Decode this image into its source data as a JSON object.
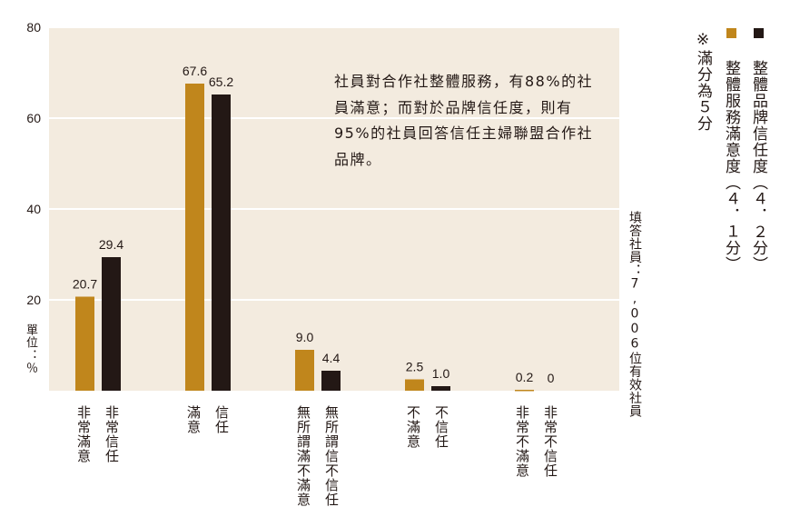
{
  "chart_data": {
    "type": "bar",
    "categories": [
      "非常滿意 / 非常信任",
      "滿意 / 信任",
      "無所謂滿不滿意 / 無所謂信不信任",
      "不滿意 / 不信任",
      "非常不滿意 / 非常不信任"
    ],
    "category_labels": [
      [
        "非常滿意",
        "非常信任"
      ],
      [
        "滿意",
        "信任"
      ],
      [
        "無所謂滿不滿意",
        "無所謂信不信任"
      ],
      [
        "不滿意",
        "不信任"
      ],
      [
        "非常不滿意",
        "非常不信任"
      ]
    ],
    "series": [
      {
        "name": "整體服務滿意度（４．１分）",
        "values": [
          20.7,
          67.6,
          9.0,
          2.5,
          0.2
        ],
        "labels": [
          "20.7",
          "67.6",
          "9.0",
          "2.5",
          "0.2"
        ],
        "color": "#c0861c"
      },
      {
        "name": "整體品牌信任度（４．２分）",
        "values": [
          29.4,
          65.2,
          4.4,
          1.0,
          0
        ],
        "labels": [
          "29.4",
          "65.2",
          "4.4",
          "1.0",
          "0"
        ],
        "color": "#231815"
      }
    ],
    "ylim": [
      0,
      80
    ],
    "yticks": [
      "0",
      "20",
      "40",
      "60",
      "80"
    ],
    "ylabel": "單位：％",
    "grid": true,
    "legend_position": "right",
    "plot_background": "#f3ebdf"
  },
  "annotation": "社員對合作社整體服務，有88%的社員滿意；而對於品牌信任度，則有95%的社員回答信任主婦聯盟合作社品牌。",
  "legend": {
    "trust_label": "整體品牌信任度（４．２分）",
    "satisfaction_label": "整體服務滿意度（４．１分）",
    "note": "※滿分為５分"
  },
  "respondents_note": "填答社員：7,006位有效社員",
  "unit_label": "單位：％"
}
